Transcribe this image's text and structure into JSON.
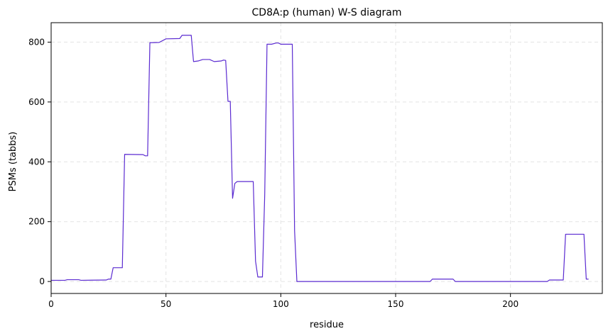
{
  "chart_data": {
    "type": "line",
    "title": "CD8A:p (human) W-S diagram",
    "xlabel": "residue",
    "ylabel": "PSMs (tabbs)",
    "xlim": [
      0,
      240
    ],
    "ylim": [
      -40,
      865
    ],
    "xticks": [
      0,
      50,
      100,
      150,
      200
    ],
    "yticks": [
      0,
      200,
      400,
      600,
      800
    ],
    "grid": true,
    "series": [
      {
        "color": "#5b2bd1",
        "points": [
          [
            0,
            4
          ],
          [
            6,
            4
          ],
          [
            7,
            6
          ],
          [
            12,
            6
          ],
          [
            13,
            4
          ],
          [
            24,
            5
          ],
          [
            25,
            8
          ],
          [
            26,
            8
          ],
          [
            27,
            46
          ],
          [
            31,
            46
          ],
          [
            32,
            425
          ],
          [
            40,
            424
          ],
          [
            41,
            420
          ],
          [
            42,
            420
          ],
          [
            43,
            798
          ],
          [
            47,
            799
          ],
          [
            50,
            811
          ],
          [
            56,
            812
          ],
          [
            57,
            823
          ],
          [
            61,
            823
          ],
          [
            62,
            735
          ],
          [
            64,
            737
          ],
          [
            66,
            742
          ],
          [
            69,
            742
          ],
          [
            71,
            735
          ],
          [
            74,
            737
          ],
          [
            75,
            740
          ],
          [
            76,
            739
          ],
          [
            77,
            602
          ],
          [
            78,
            602
          ],
          [
            79,
            278
          ],
          [
            80,
            328
          ],
          [
            81,
            334
          ],
          [
            88,
            334
          ],
          [
            89,
            68
          ],
          [
            90,
            15
          ],
          [
            92,
            15
          ],
          [
            93,
            290
          ],
          [
            94,
            793
          ],
          [
            96,
            793
          ],
          [
            98,
            797
          ],
          [
            99,
            797
          ],
          [
            100,
            793
          ],
          [
            105,
            793
          ],
          [
            106,
            170
          ],
          [
            107,
            0
          ],
          [
            165,
            0
          ],
          [
            166,
            8
          ],
          [
            175,
            8
          ],
          [
            176,
            0
          ],
          [
            216,
            0
          ],
          [
            217,
            5
          ],
          [
            223,
            5
          ],
          [
            224,
            158
          ],
          [
            232,
            158
          ],
          [
            233,
            8
          ],
          [
            234,
            8
          ]
        ]
      }
    ]
  }
}
